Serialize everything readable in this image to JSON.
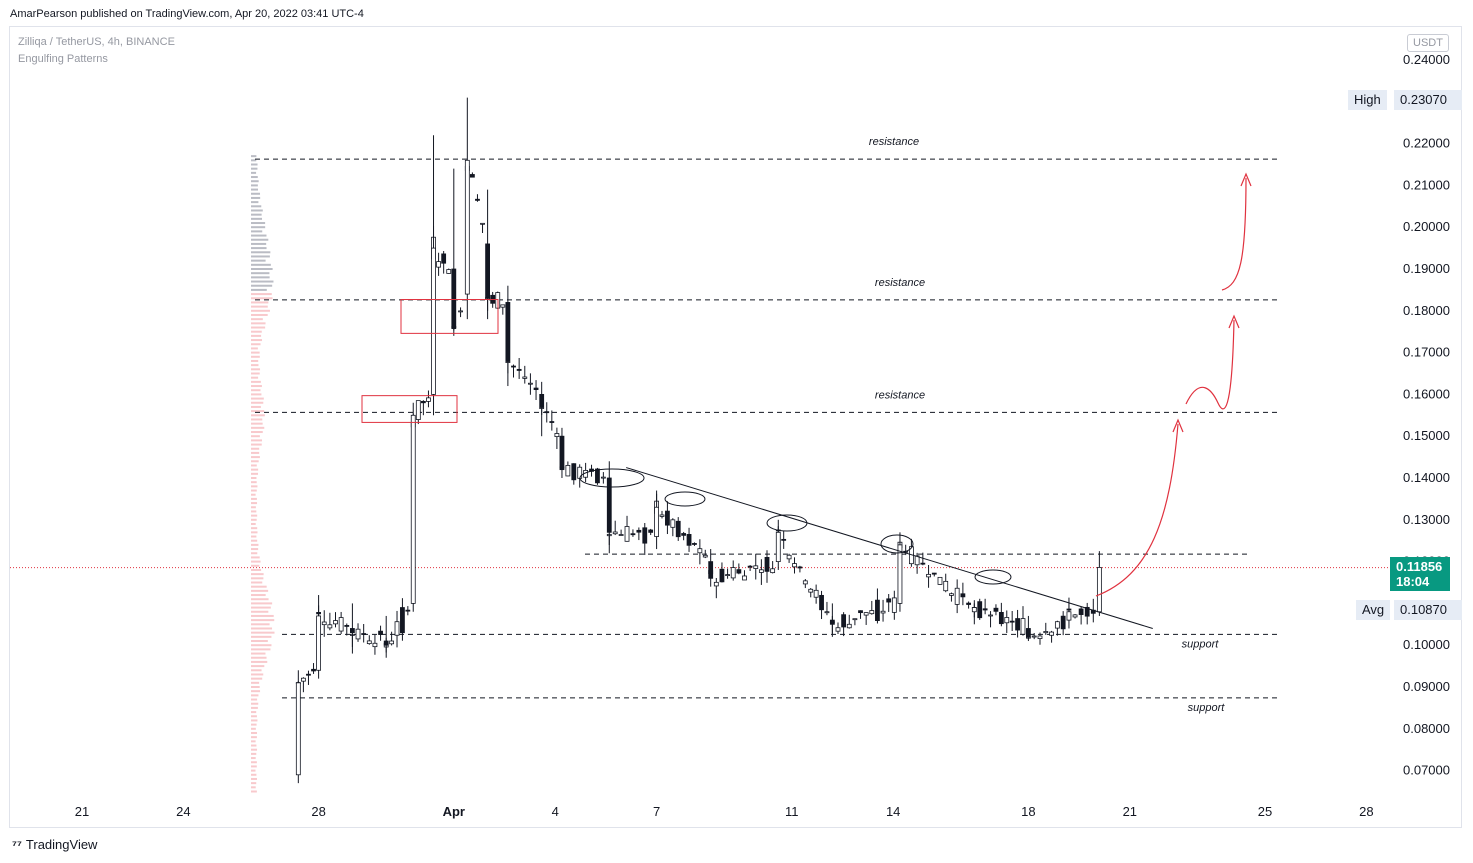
{
  "header": {
    "publisher": "AmarPearson published on TradingView.com, Apr 20, 2022 03:41 UTC-4"
  },
  "symbol": {
    "title": "Zilliqa / TetherUS, 4h, BINANCE",
    "indicator": "Engulfing Patterns",
    "unit": "USDT"
  },
  "footer": {
    "brand": "TradingView",
    "logo": "tradingview-logo"
  },
  "colors": {
    "up": "#ffffff",
    "down": "#131722",
    "accent": "#089981",
    "red": "#e0323f",
    "vp_up": "#f7c3c6",
    "vp_down": "#b2b5be"
  },
  "labels": {
    "high_label": "High",
    "high_value": "0.23070",
    "avg_label": "Avg",
    "avg_value": "0.10870",
    "last_price": "0.11856",
    "countdown": "18:04"
  },
  "annotations": {
    "resistance_1": "resistance",
    "resistance_2": "resistance",
    "resistance_3": "resistance",
    "support_1": "support",
    "support_2": "support"
  },
  "chart_data": {
    "type": "candlestick",
    "title": "Zilliqa / TetherUS, 4h, BINANCE",
    "y_axis": {
      "ylim": [
        0.064,
        0.246
      ],
      "ticks": [
        "0.24000",
        "0.22000",
        "0.21000",
        "0.20000",
        "0.19000",
        "0.18000",
        "0.17000",
        "0.16000",
        "0.15000",
        "0.14000",
        "0.13000",
        "0.12000",
        "0.10000",
        "0.09000",
        "0.08000",
        "0.07000"
      ],
      "tick_values": [
        0.24,
        0.22,
        0.21,
        0.2,
        0.19,
        0.18,
        0.17,
        0.16,
        0.15,
        0.14,
        0.13,
        0.12,
        0.1,
        0.09,
        0.08,
        0.07
      ]
    },
    "x_axis": {
      "ticks": [
        "21",
        "24",
        "28",
        "Apr",
        "4",
        "7",
        "11",
        "14",
        "18",
        "21",
        "25",
        "28"
      ],
      "tick_day_index": [
        0,
        3,
        7,
        11,
        14,
        17,
        21,
        24,
        28,
        31,
        35,
        38
      ]
    },
    "horizontal_levels": [
      {
        "label": "resistance",
        "value": 0.2163
      },
      {
        "label": "resistance",
        "value": 0.1826
      },
      {
        "label": "resistance",
        "value": 0.1557
      },
      {
        "value": 0.1218
      },
      {
        "label": "support",
        "value": 0.1026
      },
      {
        "label": "support",
        "value": 0.0874
      }
    ],
    "trendline": {
      "from": [
        16.1,
        0.1425
      ],
      "to": [
        30.2,
        0.104
      ]
    },
    "last_price": 0.11856,
    "high": 0.2307,
    "avg": 0.1087,
    "key_candles": [
      {
        "day": 6.4,
        "open": 0.069,
        "close": 0.091,
        "low": 0.067,
        "high": 0.094
      },
      {
        "day": 7.0,
        "open": 0.094,
        "close": 0.107,
        "low": 0.092,
        "high": 0.112
      },
      {
        "day": 8.0,
        "open": 0.104,
        "close": 0.103,
        "low": 0.098,
        "high": 0.11
      },
      {
        "day": 9.0,
        "open": 0.101,
        "close": 0.1,
        "low": 0.097,
        "high": 0.107
      },
      {
        "day": 9.8,
        "open": 0.11,
        "close": 0.155,
        "low": 0.108,
        "high": 0.158
      },
      {
        "day": 10.4,
        "open": 0.16,
        "close": 0.195,
        "low": 0.155,
        "high": 0.222
      },
      {
        "day": 11.0,
        "open": 0.19,
        "close": 0.176,
        "low": 0.174,
        "high": 0.214
      },
      {
        "day": 11.4,
        "open": 0.184,
        "close": 0.216,
        "low": 0.178,
        "high": 0.231
      },
      {
        "day": 12.0,
        "open": 0.196,
        "close": 0.183,
        "low": 0.178,
        "high": 0.209
      },
      {
        "day": 12.6,
        "open": 0.182,
        "close": 0.168,
        "low": 0.162,
        "high": 0.186
      },
      {
        "day": 13.6,
        "open": 0.16,
        "close": 0.157,
        "low": 0.15,
        "high": 0.163
      },
      {
        "day": 14.2,
        "open": 0.15,
        "close": 0.142,
        "low": 0.14,
        "high": 0.152
      },
      {
        "day": 15.6,
        "open": 0.14,
        "close": 0.127,
        "low": 0.122,
        "high": 0.144
      },
      {
        "day": 17.0,
        "open": 0.126,
        "close": 0.133,
        "low": 0.123,
        "high": 0.137
      },
      {
        "day": 18.6,
        "open": 0.12,
        "close": 0.116,
        "low": 0.114,
        "high": 0.123
      },
      {
        "day": 20.6,
        "open": 0.12,
        "close": 0.127,
        "low": 0.118,
        "high": 0.13
      },
      {
        "day": 22.2,
        "open": 0.106,
        "close": 0.105,
        "low": 0.102,
        "high": 0.11
      },
      {
        "day": 24.2,
        "open": 0.11,
        "close": 0.124,
        "low": 0.108,
        "high": 0.127
      },
      {
        "day": 26.4,
        "open": 0.108,
        "close": 0.109,
        "low": 0.105,
        "high": 0.11
      },
      {
        "day": 28.0,
        "open": 0.104,
        "close": 0.102,
        "low": 0.101,
        "high": 0.107
      },
      {
        "day": 29.2,
        "open": 0.106,
        "close": 0.108,
        "low": 0.104,
        "high": 0.11
      },
      {
        "day": 30.1,
        "open": 0.108,
        "close": 0.1186,
        "low": 0.107,
        "high": 0.1225
      }
    ]
  }
}
